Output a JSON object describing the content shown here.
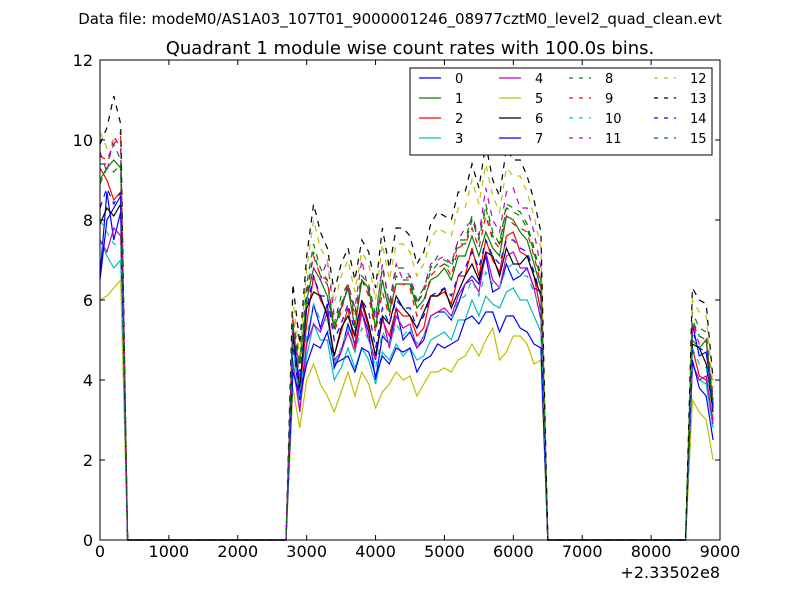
{
  "chart_data": {
    "type": "line",
    "suptitle": "Data file: modeM0/AS1A03_107T01_9000001246_08977cztM0_level2_quad_clean.evt",
    "title": "Quadrant 1 module wise count rates with 100.0s bins.",
    "xlabel": "",
    "ylabel": "",
    "x_offset_label": "+2.33502e8",
    "xlim": [
      0,
      9000
    ],
    "ylim": [
      0,
      12
    ],
    "xticks": [
      0,
      1000,
      2000,
      3000,
      4000,
      5000,
      6000,
      7000,
      8000,
      9000
    ],
    "yticks": [
      0,
      2,
      4,
      6,
      8,
      10,
      12
    ],
    "legend_position": "top-right",
    "legend_columns": 4,
    "x": [
      0,
      100,
      200,
      300,
      400,
      500,
      2700,
      2800,
      2900,
      3000,
      3100,
      3200,
      3300,
      3400,
      3500,
      3600,
      3700,
      3800,
      3900,
      4000,
      4100,
      4200,
      4300,
      4400,
      4500,
      4600,
      4700,
      4800,
      4900,
      5000,
      5100,
      5200,
      5300,
      5400,
      5500,
      5600,
      5700,
      5800,
      5900,
      6000,
      6100,
      6200,
      6300,
      6400,
      6500,
      6600,
      8500,
      8600,
      8700,
      8800,
      8900
    ],
    "series": [
      {
        "name": "0",
        "color": "#0000ff",
        "dash": "solid",
        "values": [
          6.6,
          8.7,
          7.5,
          8.2,
          0,
          0,
          0,
          4.9,
          3.5,
          4.9,
          5.9,
          5.3,
          5.9,
          4.3,
          4.7,
          5.4,
          4.9,
          5.7,
          5.2,
          4.0,
          5.1,
          4.9,
          5.8,
          5.0,
          5.2,
          4.8,
          5.0,
          5.6,
          5.7,
          5.7,
          5.5,
          5.9,
          6.4,
          6.6,
          6.4,
          7.1,
          6.2,
          6.3,
          6.9,
          6.5,
          6.6,
          6.8,
          6.3,
          6.2,
          0,
          0,
          0,
          5.4,
          4.6,
          4.7,
          3.4
        ]
      },
      {
        "name": "1",
        "color": "#008000",
        "dash": "solid",
        "values": [
          9.0,
          9.3,
          9.5,
          9.3,
          0,
          0,
          0,
          5.1,
          4.4,
          6.0,
          6.8,
          6.5,
          6.1,
          5.3,
          5.8,
          6.3,
          5.3,
          6.5,
          6.3,
          5.3,
          6.5,
          5.7,
          6.4,
          6.4,
          6.4,
          5.8,
          6.0,
          6.5,
          6.6,
          6.8,
          6.5,
          7.1,
          7.1,
          7.6,
          7.1,
          7.7,
          7.3,
          7.1,
          8.1,
          8.0,
          7.7,
          7.5,
          6.9,
          6.3,
          0,
          0,
          0,
          5.0,
          4.8,
          5.0,
          3.3
        ]
      },
      {
        "name": "2",
        "color": "#ff0000",
        "dash": "solid",
        "values": [
          9.3,
          9.0,
          8.5,
          8.7,
          0,
          0,
          0,
          5.3,
          3.7,
          5.4,
          6.6,
          6.0,
          5.7,
          4.6,
          5.2,
          5.8,
          4.8,
          5.9,
          5.3,
          4.6,
          5.5,
          5.1,
          5.8,
          5.6,
          5.6,
          5.1,
          5.3,
          6.1,
          6.1,
          6.2,
          5.9,
          6.6,
          6.6,
          7.3,
          6.6,
          7.5,
          7.0,
          6.7,
          7.6,
          7.7,
          7.2,
          7.1,
          6.6,
          5.7,
          0,
          0,
          0,
          4.8,
          4.1,
          4.0,
          3.0
        ]
      },
      {
        "name": "3",
        "color": "#00bfbf",
        "dash": "solid",
        "values": [
          7.5,
          7.1,
          6.8,
          7.0,
          0,
          0,
          0,
          4.5,
          3.3,
          4.6,
          5.4,
          5.0,
          5.0,
          4.0,
          4.3,
          4.8,
          4.3,
          4.8,
          4.5,
          3.9,
          4.7,
          4.5,
          4.9,
          4.6,
          4.8,
          4.5,
          4.6,
          5.0,
          5.1,
          5.2,
          5.0,
          5.5,
          5.5,
          6.0,
          5.6,
          6.1,
          5.9,
          5.8,
          6.2,
          6.3,
          6.0,
          6.0,
          5.6,
          5.2,
          0,
          0,
          0,
          4.4,
          4.0,
          3.9,
          2.8
        ]
      },
      {
        "name": "4",
        "color": "#bf00bf",
        "dash": "solid",
        "values": [
          7.5,
          7.2,
          7.8,
          7.6,
          0,
          0,
          0,
          4.4,
          3.2,
          4.9,
          5.4,
          5.2,
          5.7,
          4.5,
          4.7,
          5.2,
          4.7,
          5.7,
          5.0,
          4.5,
          5.6,
          4.8,
          5.6,
          5.3,
          5.4,
          4.8,
          5.1,
          5.6,
          5.7,
          5.8,
          5.6,
          6.1,
          6.4,
          6.5,
          6.2,
          7.2,
          6.5,
          6.3,
          7.1,
          7.2,
          6.8,
          6.8,
          6.3,
          5.5,
          0,
          0,
          0,
          4.4,
          4.0,
          4.1,
          2.9
        ]
      },
      {
        "name": "5",
        "color": "#bfbf00",
        "dash": "solid",
        "values": [
          6.0,
          6.1,
          6.3,
          6.5,
          0,
          0,
          0,
          3.8,
          2.8,
          4.0,
          4.4,
          3.9,
          3.6,
          3.2,
          3.7,
          4.2,
          3.6,
          4.2,
          3.9,
          3.3,
          3.7,
          3.9,
          4.2,
          4.0,
          4.1,
          3.6,
          3.9,
          4.2,
          4.2,
          4.3,
          4.2,
          4.5,
          4.6,
          4.9,
          4.6,
          5.0,
          5.3,
          4.5,
          4.7,
          5.1,
          5.1,
          4.9,
          4.4,
          4.5,
          0,
          0,
          0,
          3.5,
          3.2,
          3.0,
          2.0
        ]
      },
      {
        "name": "6",
        "color": "#000000",
        "dash": "solid",
        "values": [
          7.9,
          8.3,
          8.1,
          8.4,
          0,
          0,
          0,
          5.1,
          3.8,
          5.8,
          6.2,
          6.1,
          5.6,
          4.6,
          5.3,
          5.6,
          5.1,
          6.0,
          5.4,
          4.6,
          5.6,
          5.4,
          6.1,
          5.8,
          5.6,
          5.3,
          5.7,
          6.1,
          6.1,
          6.3,
          5.8,
          6.2,
          6.6,
          6.9,
          6.5,
          7.2,
          7.1,
          6.6,
          7.3,
          6.9,
          6.9,
          7.1,
          6.6,
          6.1,
          0,
          0,
          0,
          4.9,
          4.8,
          4.4,
          3.2
        ]
      },
      {
        "name": "7",
        "color": "#0000ff",
        "dash": "solid",
        "values": [
          6.5,
          8.0,
          8.3,
          8.6,
          0,
          0,
          0,
          4.2,
          3.6,
          4.4,
          4.9,
          4.8,
          5.2,
          4.4,
          4.5,
          4.6,
          4.2,
          4.8,
          4.7,
          4.1,
          4.6,
          4.4,
          4.8,
          4.7,
          4.8,
          4.2,
          4.5,
          4.6,
          4.9,
          4.8,
          4.9,
          5.0,
          5.5,
          5.6,
          5.4,
          5.7,
          5.7,
          5.2,
          5.6,
          5.6,
          5.3,
          5.2,
          4.9,
          4.8,
          0,
          0,
          0,
          4.5,
          3.8,
          3.6,
          2.5
        ]
      },
      {
        "name": "8",
        "color": "#008000",
        "dash": "dashed",
        "values": [
          9.4,
          9.4,
          9.9,
          9.5,
          0,
          0,
          0,
          5.5,
          4.5,
          6.4,
          7.4,
          6.8,
          6.5,
          5.4,
          6.1,
          6.4,
          5.7,
          6.6,
          6.4,
          5.6,
          6.8,
          5.9,
          6.8,
          6.8,
          6.6,
          6.0,
          6.3,
          6.8,
          7.1,
          7.0,
          6.9,
          7.5,
          7.5,
          8.1,
          7.6,
          8.4,
          7.7,
          7.4,
          8.4,
          8.3,
          8.2,
          7.9,
          7.3,
          6.6,
          0,
          0,
          0,
          5.7,
          5.3,
          5.2,
          3.5
        ]
      },
      {
        "name": "9",
        "color": "#ff0000",
        "dash": "dashed",
        "values": [
          9.6,
          9.5,
          9.9,
          10.1,
          0,
          0,
          0,
          5.6,
          4.2,
          6.2,
          7.1,
          6.6,
          6.5,
          5.2,
          5.7,
          6.4,
          5.4,
          6.5,
          6.1,
          5.2,
          6.2,
          5.6,
          6.4,
          6.4,
          6.3,
          5.6,
          5.9,
          6.6,
          6.8,
          6.9,
          6.6,
          7.3,
          7.4,
          7.8,
          7.3,
          8.1,
          7.5,
          7.3,
          8.1,
          7.9,
          7.8,
          7.7,
          7.1,
          6.4,
          0,
          0,
          0,
          5.4,
          5.1,
          5.0,
          3.4
        ]
      },
      {
        "name": "10",
        "color": "#00bfbf",
        "dash": "dashed",
        "values": [
          8.0,
          7.7,
          7.4,
          7.4,
          0,
          0,
          0,
          4.9,
          3.6,
          5.1,
          5.9,
          5.5,
          5.5,
          4.4,
          4.8,
          5.3,
          4.7,
          5.3,
          5.0,
          4.3,
          5.2,
          4.9,
          5.4,
          5.1,
          5.3,
          4.9,
          5.1,
          5.5,
          5.6,
          5.7,
          5.5,
          6.0,
          6.1,
          6.5,
          6.1,
          6.7,
          6.4,
          6.3,
          6.8,
          6.9,
          6.6,
          6.6,
          6.2,
          5.7,
          0,
          0,
          0,
          4.8,
          4.4,
          4.3,
          3.1
        ]
      },
      {
        "name": "11",
        "color": "#bf00bf",
        "dash": "dashed",
        "values": [
          9.7,
          9.2,
          10.1,
          9.8,
          0,
          0,
          0,
          5.4,
          4.0,
          6.1,
          6.8,
          6.5,
          7.0,
          5.6,
          5.8,
          6.4,
          5.8,
          7.0,
          6.2,
          5.5,
          6.9,
          5.9,
          6.9,
          6.5,
          6.6,
          5.9,
          6.3,
          6.9,
          7.0,
          7.1,
          6.9,
          7.5,
          7.8,
          8.0,
          7.6,
          8.8,
          8.0,
          7.7,
          8.7,
          8.8,
          8.3,
          8.3,
          7.7,
          6.8,
          0,
          0,
          0,
          5.4,
          4.9,
          5.0,
          3.6
        ]
      },
      {
        "name": "12",
        "color": "#bfbf00",
        "dash": "dashed",
        "values": [
          10.2,
          9.8,
          10.0,
          10.2,
          0,
          0,
          0,
          6.0,
          4.6,
          6.8,
          8.0,
          7.3,
          7.0,
          5.9,
          6.6,
          7.0,
          6.2,
          7.2,
          6.9,
          6.0,
          7.4,
          6.5,
          7.4,
          7.4,
          7.2,
          6.6,
          6.9,
          7.5,
          7.8,
          7.7,
          7.6,
          8.3,
          8.3,
          9.0,
          8.4,
          9.4,
          8.6,
          8.2,
          9.3,
          9.1,
          9.1,
          8.7,
          8.1,
          7.3,
          0,
          0,
          0,
          6.0,
          5.7,
          5.6,
          3.8
        ]
      },
      {
        "name": "13",
        "color": "#000000",
        "dash": "dashed",
        "values": [
          9.9,
          10.3,
          11.1,
          10.4,
          0,
          0,
          0,
          6.4,
          4.9,
          7.1,
          8.4,
          7.7,
          7.3,
          6.2,
          6.9,
          7.3,
          6.5,
          7.5,
          7.2,
          6.3,
          7.8,
          6.8,
          7.8,
          7.8,
          7.6,
          6.9,
          7.2,
          7.9,
          8.2,
          8.1,
          8.0,
          8.7,
          8.7,
          9.4,
          8.8,
          9.9,
          9.0,
          8.6,
          9.8,
          9.5,
          9.5,
          9.1,
          8.5,
          7.7,
          0,
          0,
          0,
          6.3,
          6.0,
          5.9,
          4.0
        ]
      },
      {
        "name": "14",
        "color": "#0000ff",
        "dash": "dashed",
        "values": [
          8.3,
          8.8,
          8.4,
          8.7,
          0,
          0,
          0,
          5.2,
          3.9,
          5.8,
          6.6,
          6.1,
          6.1,
          5.0,
          5.4,
          5.9,
          5.2,
          6.0,
          5.7,
          4.8,
          5.8,
          5.4,
          6.0,
          5.8,
          5.8,
          5.3,
          5.6,
          6.1,
          6.2,
          6.3,
          6.1,
          6.6,
          6.8,
          7.2,
          6.8,
          7.5,
          7.1,
          6.9,
          7.5,
          7.5,
          7.3,
          7.2,
          6.7,
          6.1,
          0,
          0,
          0,
          5.2,
          4.8,
          4.7,
          3.3
        ]
      },
      {
        "name": "15",
        "color": "#008000",
        "dash": "dashed",
        "values": [
          8.9,
          9.3,
          9.2,
          9.4,
          0,
          0,
          0,
          5.5,
          4.2,
          6.1,
          7.2,
          6.6,
          6.4,
          5.3,
          5.9,
          6.3,
          5.6,
          6.5,
          6.2,
          5.3,
          6.5,
          5.8,
          6.6,
          6.5,
          6.5,
          5.9,
          6.2,
          6.7,
          6.9,
          6.9,
          6.8,
          7.4,
          7.4,
          8.0,
          7.5,
          8.3,
          7.6,
          7.4,
          8.3,
          8.2,
          8.1,
          7.8,
          7.2,
          6.5,
          0,
          0,
          0,
          5.5,
          5.1,
          5.0,
          3.5
        ]
      }
    ]
  }
}
